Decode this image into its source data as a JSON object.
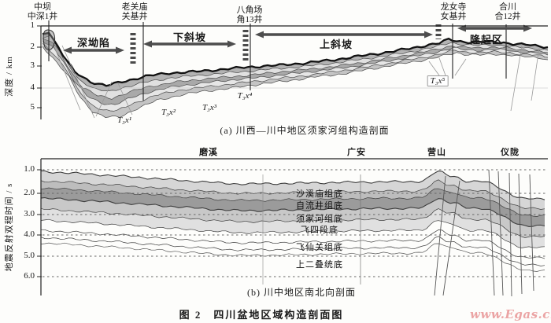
{
  "figure": {
    "caption": "图 2　四川盆地区域构造剖面图",
    "watermark": "www.Egas.cn"
  },
  "panel_a": {
    "caption": "(a) 川西—川中地区须家河组构造剖面",
    "axis": {
      "label": "深度 / km",
      "ticks": [
        "1",
        "2",
        "3",
        "4",
        "5"
      ]
    },
    "wells": [
      {
        "line1": "中坝",
        "line2": "中深1井"
      },
      {
        "line1": "老关庙",
        "line2": "关基井"
      },
      {
        "line1": "八角场",
        "line2": "角13井"
      },
      {
        "line1": "龙女寺",
        "line2": "女基井"
      },
      {
        "line1": "合川",
        "line2": "合12井"
      }
    ],
    "zones": [
      "深坳陷",
      "下斜坡",
      "上斜坡",
      "隆起区"
    ],
    "strata": [
      "T₃x¹",
      "T₃x²",
      "T₃x³",
      "T₃x⁴",
      "T₃x⁵"
    ]
  },
  "panel_b": {
    "caption": "(b) 川中地区南北向剖面",
    "axis": {
      "label": "地震反射双程时间 / s",
      "ticks": [
        "1.0",
        "2.0",
        "3.0",
        "4.0",
        "5.0",
        "6.0"
      ]
    },
    "locations": [
      "磨溪",
      "广安",
      "营山",
      "仪陇"
    ],
    "horizons": [
      "沙溪庙组底",
      "自流井组底",
      "须家河组底",
      "飞四段底",
      "飞仙关组底",
      "上二叠统底"
    ]
  }
}
